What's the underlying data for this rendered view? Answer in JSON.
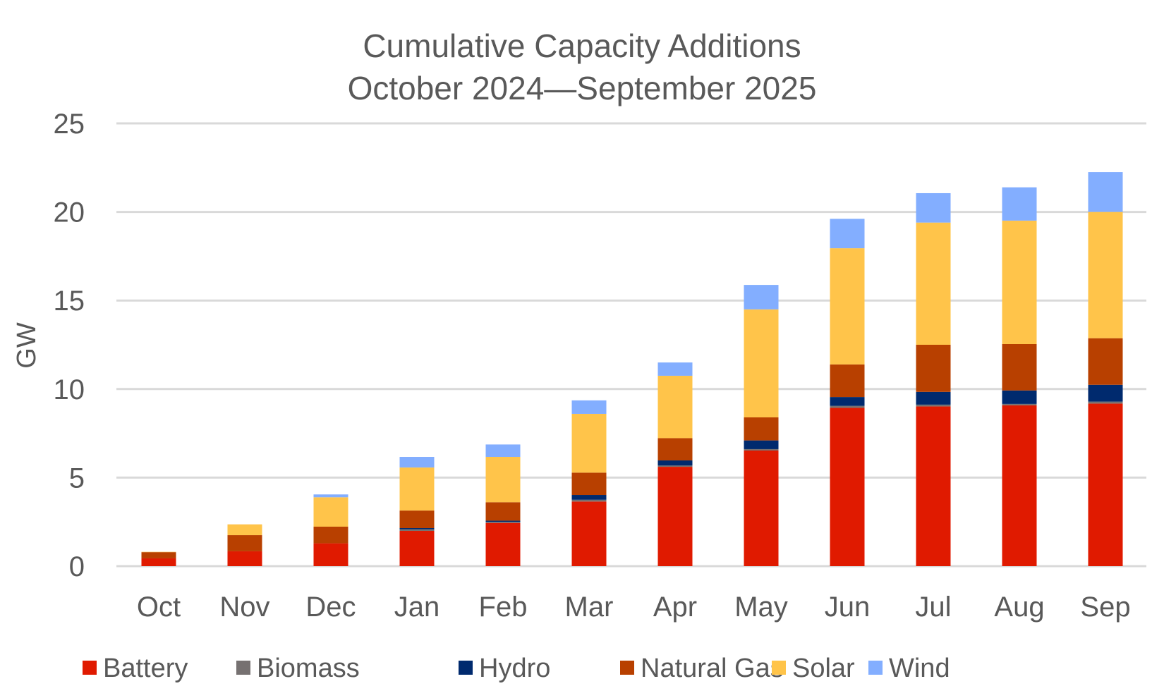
{
  "chart_data": {
    "type": "bar",
    "stacked": true,
    "title": "Cumulative Capacity Additions",
    "subtitle": "October 2024—September 2025",
    "xlabel": "",
    "ylabel": "GW",
    "ylim": [
      0,
      25
    ],
    "yticks": [
      0,
      5,
      10,
      15,
      20,
      25
    ],
    "grid": true,
    "legend_position": "bottom",
    "categories": [
      "Oct",
      "Nov",
      "Dec",
      "Jan",
      "Feb",
      "Mar",
      "Apr",
      "May",
      "Jun",
      "Jul",
      "Aug",
      "Sep"
    ],
    "series": [
      {
        "name": "Battery",
        "color": "#E01A00",
        "values": [
          0.44,
          0.84,
          1.29,
          1.99,
          2.44,
          3.65,
          5.61,
          6.53,
          8.94,
          9.02,
          9.08,
          9.18
        ]
      },
      {
        "name": "Biomass",
        "color": "#767171",
        "values": [
          0.0,
          0.0,
          0.0,
          0.09,
          0.06,
          0.1,
          0.07,
          0.08,
          0.11,
          0.1,
          0.08,
          0.11
        ]
      },
      {
        "name": "Hydro",
        "color": "#002A6E",
        "values": [
          0.0,
          0.0,
          0.0,
          0.07,
          0.07,
          0.27,
          0.29,
          0.49,
          0.5,
          0.72,
          0.76,
          0.95
        ]
      },
      {
        "name": "Natural Gas",
        "color": "#B84000",
        "values": [
          0.35,
          0.91,
          0.94,
          0.99,
          1.04,
          1.26,
          1.26,
          1.3,
          1.84,
          2.66,
          2.62,
          2.63
        ]
      },
      {
        "name": "Solar",
        "color": "#FFC44A",
        "values": [
          0.02,
          0.61,
          1.66,
          2.43,
          2.56,
          3.32,
          3.52,
          6.1,
          6.56,
          6.9,
          6.97,
          7.13
        ]
      },
      {
        "name": "Wind",
        "color": "#83AEFF",
        "values": [
          0.0,
          0.0,
          0.16,
          0.6,
          0.7,
          0.76,
          0.75,
          1.38,
          1.66,
          1.66,
          1.88,
          2.25
        ]
      }
    ]
  }
}
